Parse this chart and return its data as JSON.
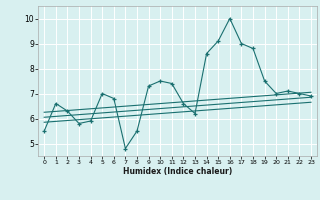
{
  "xlabel": "Humidex (Indice chaleur)",
  "ylabel": "",
  "bg_color": "#d8f0f0",
  "grid_color": "#ffffff",
  "line_color": "#1a7070",
  "xlim": [
    -0.5,
    23.5
  ],
  "ylim": [
    4.5,
    10.5
  ],
  "yticks": [
    5,
    6,
    7,
    8,
    9,
    10
  ],
  "xticks": [
    0,
    1,
    2,
    3,
    4,
    5,
    6,
    7,
    8,
    9,
    10,
    11,
    12,
    13,
    14,
    15,
    16,
    17,
    18,
    19,
    20,
    21,
    22,
    23
  ],
  "series1_x": [
    0,
    1,
    2,
    3,
    4,
    5,
    6,
    7,
    8,
    9,
    10,
    11,
    12,
    13,
    14,
    15,
    16,
    17,
    18,
    19,
    20,
    21,
    22,
    23
  ],
  "series1_y": [
    5.5,
    6.6,
    6.3,
    5.8,
    5.9,
    7.0,
    6.8,
    4.8,
    5.5,
    7.3,
    7.5,
    7.4,
    6.6,
    6.2,
    8.6,
    9.1,
    10.0,
    9.0,
    8.8,
    7.5,
    7.0,
    7.1,
    7.0,
    6.9
  ],
  "trend1_x": [
    0,
    23
  ],
  "trend1_y": [
    6.05,
    6.85
  ],
  "trend2_x": [
    0,
    23
  ],
  "trend2_y": [
    6.25,
    7.05
  ],
  "trend3_x": [
    0,
    23
  ],
  "trend3_y": [
    5.85,
    6.65
  ]
}
